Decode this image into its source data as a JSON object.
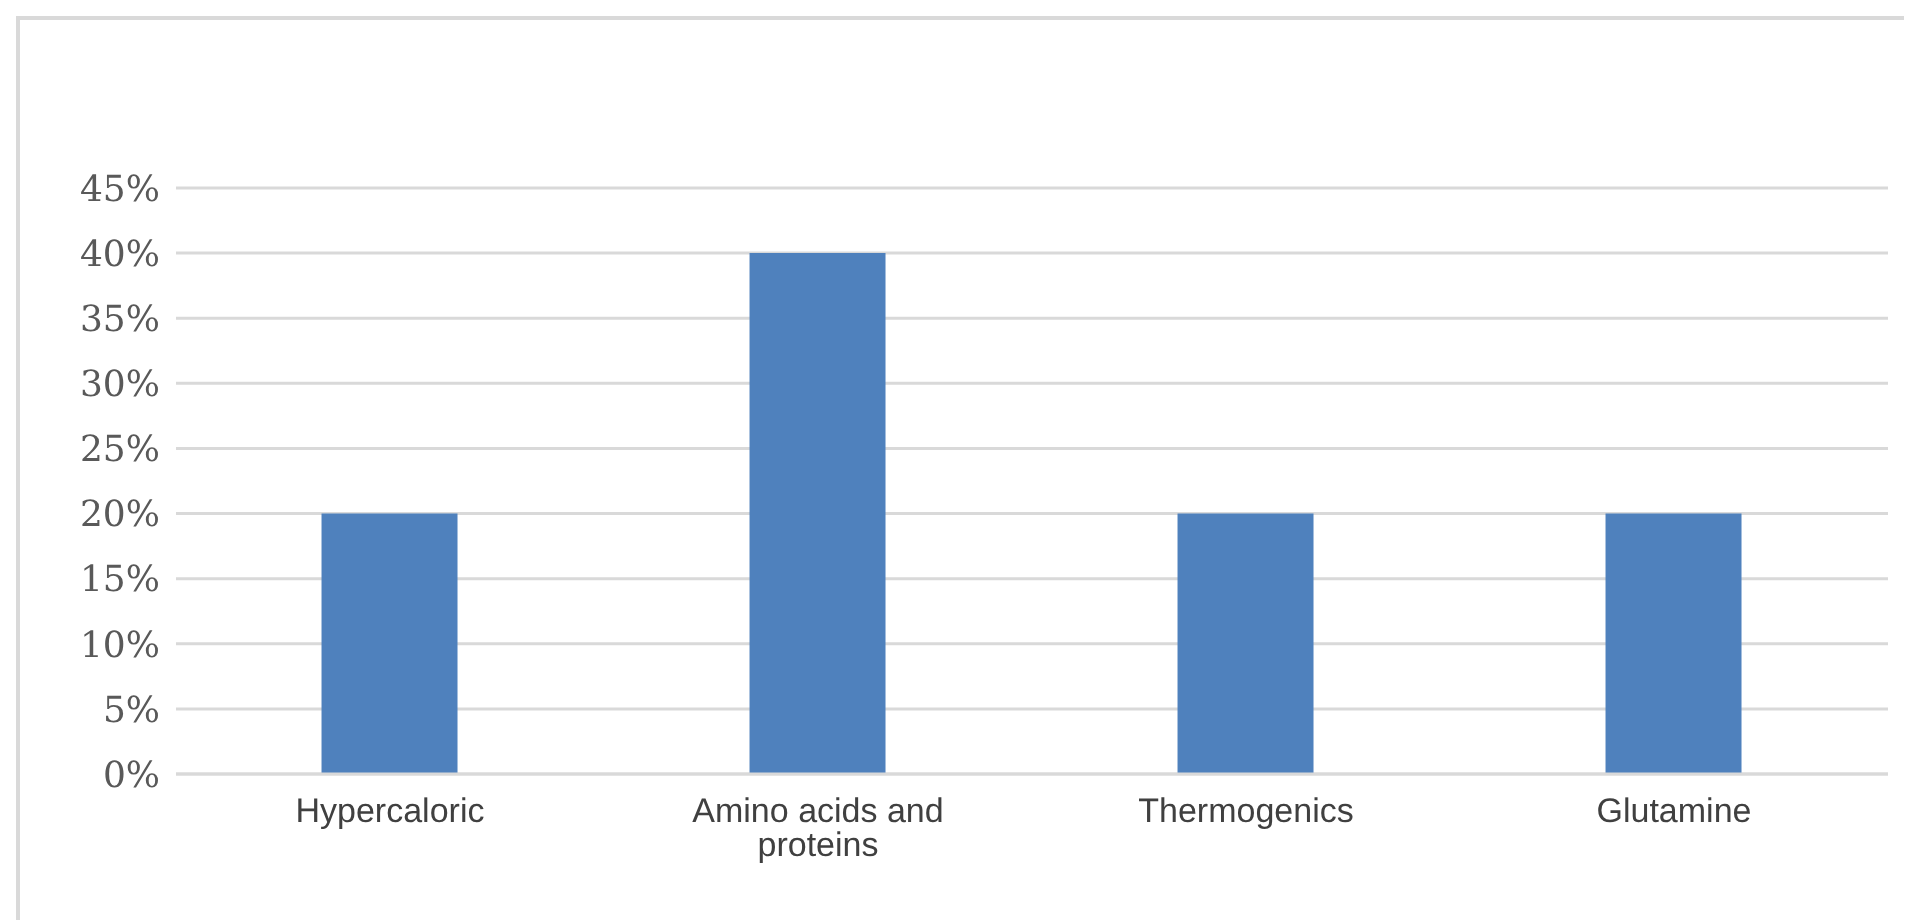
{
  "chart_data": {
    "type": "bar",
    "categories": [
      "Hypercaloric",
      "Amino acids and proteins",
      "Thermogenics",
      "Glutamine"
    ],
    "values": [
      20,
      40,
      20,
      20
    ],
    "color": "#4f81bd",
    "ylim": [
      0,
      45
    ],
    "yticks": [
      {
        "value": 0,
        "label": "0%"
      },
      {
        "value": 5,
        "label": "5%"
      },
      {
        "value": 10,
        "label": "10%"
      },
      {
        "value": 15,
        "label": "15%"
      },
      {
        "value": 20,
        "label": "20%"
      },
      {
        "value": 25,
        "label": "25%"
      },
      {
        "value": 30,
        "label": "30%"
      },
      {
        "value": 35,
        "label": "35%"
      },
      {
        "value": 40,
        "label": "40%"
      },
      {
        "value": 45,
        "label": "45%"
      }
    ],
    "grid": "y",
    "legend": false
  }
}
